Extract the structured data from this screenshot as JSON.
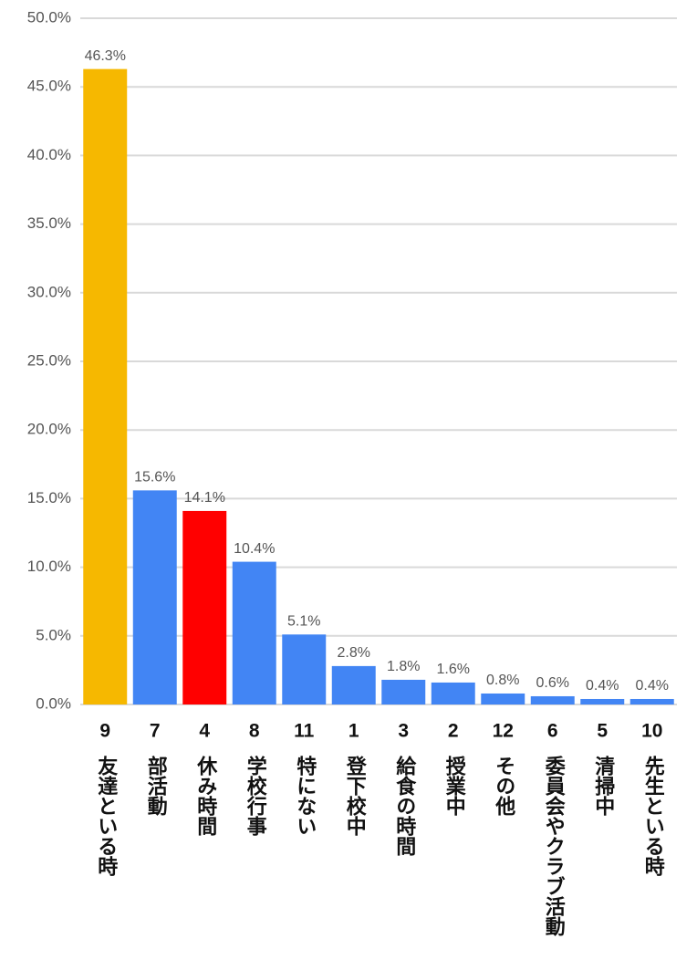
{
  "chart_data": {
    "type": "bar",
    "categories": [
      "9",
      "7",
      "4",
      "8",
      "11",
      "1",
      "3",
      "2",
      "12",
      "6",
      "5",
      "10"
    ],
    "category_names": [
      "友達といる時",
      "部活動",
      "休み時間",
      "学校行事",
      "特にない",
      "登下校中",
      "給食の時間",
      "授業中",
      "その他",
      "委員会やクラブ活動",
      "清掃中",
      "先生といる時"
    ],
    "values": [
      46.3,
      15.6,
      14.1,
      10.4,
      5.1,
      2.8,
      1.8,
      1.6,
      0.8,
      0.6,
      0.4,
      0.4
    ],
    "value_labels": [
      "46.3%",
      "15.6%",
      "14.1%",
      "10.4%",
      "5.1%",
      "2.8%",
      "1.8%",
      "1.6%",
      "0.8%",
      "0.6%",
      "0.4%",
      "0.4%"
    ],
    "colors": [
      "#f6b800",
      "#4285f4",
      "#ff0000",
      "#4285f4",
      "#4285f4",
      "#4285f4",
      "#4285f4",
      "#4285f4",
      "#4285f4",
      "#4285f4",
      "#4285f4",
      "#4285f4"
    ],
    "ylim": [
      0,
      50
    ],
    "yticks": [
      {
        "value": 0,
        "label": "0.0%"
      },
      {
        "value": 5,
        "label": "5.0%"
      },
      {
        "value": 10,
        "label": "10.0%"
      },
      {
        "value": 15,
        "label": "15.0%"
      },
      {
        "value": 20,
        "label": "20.0%"
      },
      {
        "value": 25,
        "label": "25.0%"
      },
      {
        "value": 30,
        "label": "30.0%"
      },
      {
        "value": 35,
        "label": "35.0%"
      },
      {
        "value": 40,
        "label": "40.0%"
      },
      {
        "value": 45,
        "label": "45.0%"
      },
      {
        "value": 50,
        "label": "50.0%"
      }
    ],
    "grid": true
  }
}
